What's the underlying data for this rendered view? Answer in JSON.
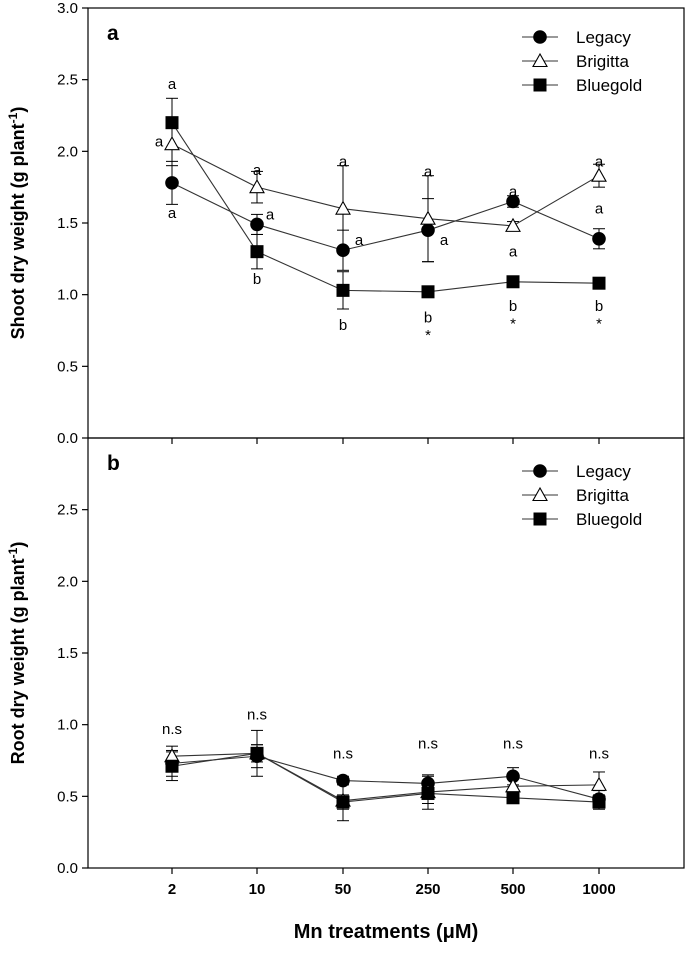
{
  "xlabel": "Mn treatments (μM)",
  "chart_data": [
    {
      "type": "line",
      "panel_label": "a",
      "ylabel": "Shoot dry weight (g plant",
      "ylabel_sup": "-1",
      "ylabel_close": ")",
      "categories": [
        "2",
        "10",
        "50",
        "250",
        "500",
        "1000"
      ],
      "yticks": [
        "0.0",
        "0.5",
        "1.0",
        "1.5",
        "2.0",
        "2.5",
        "3.0"
      ],
      "ylim": [
        0,
        3.0
      ],
      "legend_position": "top-right",
      "series": [
        {
          "name": "Legacy",
          "marker": "circle",
          "values": [
            1.78,
            1.49,
            1.31,
            1.45,
            1.65,
            1.39
          ],
          "errors": [
            0.15,
            0.07,
            0.14,
            0.22,
            0.04,
            0.07
          ]
        },
        {
          "name": "Brigitta",
          "marker": "triangle",
          "values": [
            2.05,
            1.75,
            1.6,
            1.53,
            1.48,
            1.83
          ],
          "errors": [
            0.15,
            0.11,
            0.3,
            0.3,
            0.03,
            0.08
          ]
        },
        {
          "name": "Bluegold",
          "marker": "square",
          "values": [
            2.2,
            1.3,
            1.03,
            1.02,
            1.09,
            1.08
          ],
          "errors": [
            0.17,
            0.12,
            0.13,
            0.03,
            0.04,
            0.03
          ]
        }
      ],
      "annotations": [
        {
          "cat": 0,
          "value": 2.47,
          "dx": 0,
          "text": "a"
        },
        {
          "cat": 0,
          "value": 2.07,
          "dx": -13,
          "text": "a"
        },
        {
          "cat": 0,
          "value": 1.57,
          "dx": 0,
          "text": "a"
        },
        {
          "cat": 1,
          "value": 1.87,
          "dx": 0,
          "text": "a"
        },
        {
          "cat": 1,
          "value": 1.56,
          "dx": 13,
          "text": "a"
        },
        {
          "cat": 1,
          "value": 1.11,
          "dx": 0,
          "text": "b"
        },
        {
          "cat": 2,
          "value": 1.93,
          "dx": 0,
          "text": "a"
        },
        {
          "cat": 2,
          "value": 1.38,
          "dx": 16,
          "text": "a"
        },
        {
          "cat": 2,
          "value": 0.79,
          "dx": 0,
          "text": "b"
        },
        {
          "cat": 3,
          "value": 1.86,
          "dx": 0,
          "text": "a"
        },
        {
          "cat": 3,
          "value": 1.38,
          "dx": 16,
          "text": "a"
        },
        {
          "cat": 3,
          "value": 0.84,
          "dx": 0,
          "text": "b"
        },
        {
          "cat": 3,
          "value": 0.72,
          "dx": 0,
          "text": "*"
        },
        {
          "cat": 4,
          "value": 1.72,
          "dx": 0,
          "text": "a"
        },
        {
          "cat": 4,
          "value": 1.3,
          "dx": 0,
          "text": "a"
        },
        {
          "cat": 4,
          "value": 0.92,
          "dx": 0,
          "text": "b"
        },
        {
          "cat": 4,
          "value": 0.8,
          "dx": 0,
          "text": "*"
        },
        {
          "cat": 5,
          "value": 1.93,
          "dx": 0,
          "text": "a"
        },
        {
          "cat": 5,
          "value": 1.6,
          "dx": 0,
          "text": "a"
        },
        {
          "cat": 5,
          "value": 0.92,
          "dx": 0,
          "text": "b"
        },
        {
          "cat": 5,
          "value": 0.8,
          "dx": 0,
          "text": "*"
        }
      ]
    },
    {
      "type": "line",
      "panel_label": "b",
      "ylabel": "Root dry weight (g plant",
      "ylabel_sup": "-1",
      "ylabel_close": ")",
      "xlabel": "Mn treatments (μM)",
      "categories": [
        "2",
        "10",
        "50",
        "250",
        "500",
        "1000"
      ],
      "yticks": [
        "0.0",
        "0.5",
        "1.0",
        "1.5",
        "2.0",
        "2.5"
      ],
      "ylim": [
        0,
        3.0
      ],
      "legend_position": "top-right",
      "series": [
        {
          "name": "Legacy",
          "marker": "circle",
          "values": [
            0.73,
            0.78,
            0.61,
            0.59,
            0.64,
            0.48
          ],
          "errors": [
            0.09,
            0.08,
            0.03,
            0.05,
            0.06,
            0.06
          ]
        },
        {
          "name": "Brigitta",
          "marker": "triangle",
          "values": [
            0.78,
            0.8,
            0.47,
            0.53,
            0.57,
            0.58
          ],
          "errors": [
            0.07,
            0.16,
            0.14,
            0.12,
            0.05,
            0.09
          ]
        },
        {
          "name": "Bluegold",
          "marker": "square",
          "values": [
            0.71,
            0.8,
            0.46,
            0.52,
            0.49,
            0.46
          ],
          "errors": [
            0.1,
            0.06,
            0.05,
            0.07,
            0.04,
            0.05
          ]
        }
      ],
      "annotations": [
        {
          "cat": 0,
          "value": 0.97,
          "dx": 0,
          "text": "n.s"
        },
        {
          "cat": 1,
          "value": 1.07,
          "dx": 0,
          "text": "n.s"
        },
        {
          "cat": 2,
          "value": 0.8,
          "dx": 0,
          "text": "n.s"
        },
        {
          "cat": 3,
          "value": 0.87,
          "dx": 0,
          "text": "n.s"
        },
        {
          "cat": 4,
          "value": 0.87,
          "dx": 0,
          "text": "n.s"
        },
        {
          "cat": 5,
          "value": 0.8,
          "dx": 0,
          "text": "n.s"
        }
      ]
    }
  ]
}
